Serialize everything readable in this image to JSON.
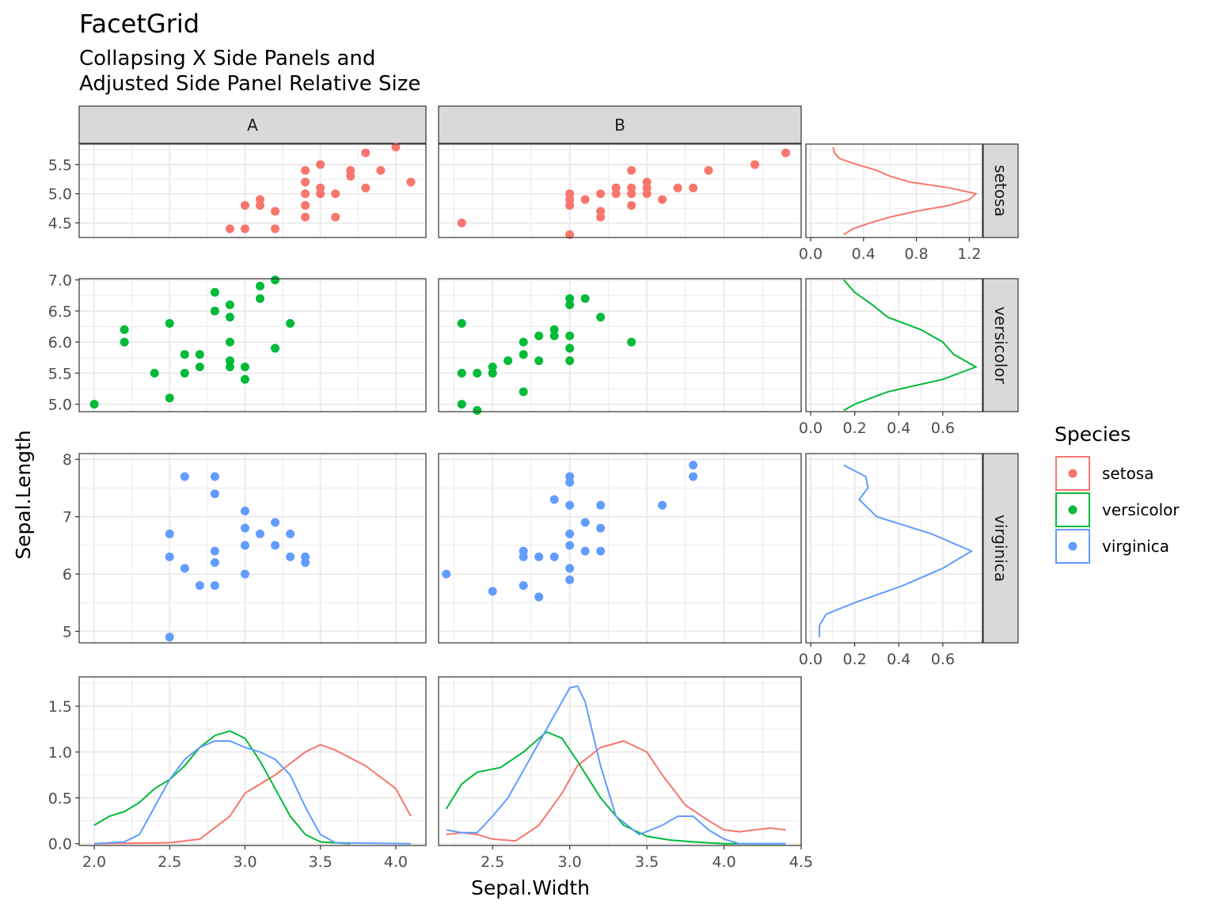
{
  "chart_data": {
    "type": "scatter",
    "title": "FacetGrid",
    "subtitle_lines": [
      "Collapsing X Side Panels and",
      "Adjusted Side Panel Relative Size"
    ],
    "xlabel": "Sepal.Width",
    "ylabel": "Sepal.Length",
    "grid": true,
    "legend_position": "right",
    "columns": [
      "A",
      "B"
    ],
    "rows": [
      "setosa",
      "versicolor",
      "virginica"
    ],
    "legend": {
      "title": "Species",
      "items": [
        {
          "label": "setosa",
          "color": "#F8766D"
        },
        {
          "label": "versicolor",
          "color": "#00BA38"
        },
        {
          "label": "virginica",
          "color": "#619CFF"
        }
      ]
    },
    "x_axis": {
      "range": [
        1.9,
        4.2
      ],
      "ticks": [
        "2.0",
        "2.5",
        "3.0",
        "3.5",
        "4.0"
      ]
    },
    "x_axis_B": {
      "range": [
        2.15,
        4.5
      ],
      "ticks": [
        "2.5",
        "3.0",
        "3.5",
        "4.0",
        "4.5"
      ]
    },
    "row_axes": [
      {
        "range": [
          4.25,
          5.85
        ],
        "ticks": [
          "4.5",
          "5.0",
          "5.5"
        ],
        "side_range": [
          0,
          1.3
        ],
        "side_ticks": [
          "0.0",
          "0.4",
          "0.8",
          "1.2"
        ]
      },
      {
        "range": [
          4.88,
          7.02
        ],
        "ticks": [
          "5.0",
          "5.5",
          "6.0",
          "6.5",
          "7.0"
        ],
        "side_range": [
          0,
          0.78
        ],
        "side_ticks": [
          "0.0",
          "0.2",
          "0.4",
          "0.6"
        ]
      },
      {
        "range": [
          4.8,
          8.1
        ],
        "ticks": [
          "5",
          "6",
          "7",
          "8"
        ],
        "side_range": [
          0,
          0.78
        ],
        "side_ticks": [
          "0.0",
          "0.2",
          "0.4",
          "0.6"
        ]
      }
    ],
    "density_axis": {
      "range": [
        -0.02,
        1.82
      ],
      "ticks": [
        "0.0",
        "0.5",
        "1.0",
        "1.5"
      ]
    },
    "points": {
      "setosa": {
        "A": [
          [
            2.9,
            4.4
          ],
          [
            3.0,
            4.4
          ],
          [
            3.2,
            4.4
          ],
          [
            3.0,
            4.8
          ],
          [
            3.1,
            4.8
          ],
          [
            3.1,
            4.9
          ],
          [
            3.2,
            4.7
          ],
          [
            3.4,
            4.6
          ],
          [
            3.4,
            4.8
          ],
          [
            3.4,
            5.0
          ],
          [
            3.4,
            5.2
          ],
          [
            3.4,
            5.4
          ],
          [
            3.5,
            5.0
          ],
          [
            3.5,
            5.1
          ],
          [
            3.5,
            5.5
          ],
          [
            3.6,
            4.6
          ],
          [
            3.6,
            5.0
          ],
          [
            3.7,
            5.3
          ],
          [
            3.7,
            5.4
          ],
          [
            3.8,
            5.1
          ],
          [
            3.8,
            5.7
          ],
          [
            3.9,
            5.4
          ],
          [
            4.0,
            5.8
          ],
          [
            4.1,
            5.2
          ]
        ],
        "B": [
          [
            2.3,
            4.5
          ],
          [
            3.0,
            4.3
          ],
          [
            3.0,
            4.8
          ],
          [
            3.0,
            4.9
          ],
          [
            3.0,
            5.0
          ],
          [
            3.1,
            4.9
          ],
          [
            3.2,
            4.6
          ],
          [
            3.2,
            4.7
          ],
          [
            3.2,
            5.0
          ],
          [
            3.3,
            5.0
          ],
          [
            3.3,
            5.1
          ],
          [
            3.4,
            4.8
          ],
          [
            3.4,
            5.0
          ],
          [
            3.4,
            5.1
          ],
          [
            3.4,
            5.4
          ],
          [
            3.5,
            5.0
          ],
          [
            3.5,
            5.1
          ],
          [
            3.5,
            5.2
          ],
          [
            3.6,
            4.9
          ],
          [
            3.7,
            5.1
          ],
          [
            3.8,
            5.1
          ],
          [
            3.9,
            5.4
          ],
          [
            4.2,
            5.5
          ],
          [
            4.4,
            5.7
          ]
        ]
      },
      "versicolor": {
        "A": [
          [
            2.0,
            5.0
          ],
          [
            2.2,
            6.0
          ],
          [
            2.2,
            6.2
          ],
          [
            2.4,
            5.5
          ],
          [
            2.5,
            5.1
          ],
          [
            2.5,
            6.3
          ],
          [
            2.6,
            5.5
          ],
          [
            2.6,
            5.8
          ],
          [
            2.7,
            5.6
          ],
          [
            2.7,
            5.8
          ],
          [
            2.8,
            6.5
          ],
          [
            2.8,
            6.8
          ],
          [
            2.9,
            5.6
          ],
          [
            2.9,
            5.7
          ],
          [
            2.9,
            6.0
          ],
          [
            2.9,
            6.4
          ],
          [
            2.9,
            6.6
          ],
          [
            3.0,
            5.4
          ],
          [
            3.0,
            5.6
          ],
          [
            3.1,
            6.7
          ],
          [
            3.1,
            6.9
          ],
          [
            3.2,
            5.9
          ],
          [
            3.2,
            7.0
          ],
          [
            3.3,
            6.3
          ]
        ],
        "B": [
          [
            2.3,
            5.0
          ],
          [
            2.3,
            5.5
          ],
          [
            2.3,
            6.3
          ],
          [
            2.4,
            4.9
          ],
          [
            2.4,
            5.5
          ],
          [
            2.5,
            5.5
          ],
          [
            2.5,
            5.6
          ],
          [
            2.6,
            5.7
          ],
          [
            2.7,
            5.2
          ],
          [
            2.7,
            5.8
          ],
          [
            2.7,
            6.0
          ],
          [
            2.8,
            5.7
          ],
          [
            2.8,
            6.1
          ],
          [
            2.9,
            6.1
          ],
          [
            2.9,
            6.2
          ],
          [
            3.0,
            5.7
          ],
          [
            3.0,
            5.9
          ],
          [
            3.0,
            6.1
          ],
          [
            3.0,
            6.6
          ],
          [
            3.0,
            6.7
          ],
          [
            3.1,
            6.7
          ],
          [
            3.2,
            6.4
          ],
          [
            3.4,
            6.0
          ]
        ]
      },
      "virginica": {
        "A": [
          [
            2.5,
            4.9
          ],
          [
            2.5,
            6.3
          ],
          [
            2.5,
            6.7
          ],
          [
            2.6,
            6.1
          ],
          [
            2.6,
            7.7
          ],
          [
            2.7,
            5.8
          ],
          [
            2.8,
            5.8
          ],
          [
            2.8,
            6.2
          ],
          [
            2.8,
            6.4
          ],
          [
            2.8,
            7.4
          ],
          [
            2.8,
            7.7
          ],
          [
            3.0,
            6.0
          ],
          [
            3.0,
            6.5
          ],
          [
            3.0,
            6.8
          ],
          [
            3.0,
            7.1
          ],
          [
            3.1,
            6.7
          ],
          [
            3.2,
            6.5
          ],
          [
            3.2,
            6.9
          ],
          [
            3.3,
            6.3
          ],
          [
            3.3,
            6.7
          ],
          [
            3.4,
            6.2
          ],
          [
            3.4,
            6.3
          ]
        ],
        "B": [
          [
            2.2,
            6.0
          ],
          [
            2.5,
            5.7
          ],
          [
            2.7,
            5.8
          ],
          [
            2.7,
            6.3
          ],
          [
            2.7,
            6.4
          ],
          [
            2.8,
            5.6
          ],
          [
            2.8,
            6.3
          ],
          [
            2.9,
            6.3
          ],
          [
            2.9,
            7.3
          ],
          [
            3.0,
            5.9
          ],
          [
            3.0,
            6.1
          ],
          [
            3.0,
            6.5
          ],
          [
            3.0,
            6.7
          ],
          [
            3.0,
            7.2
          ],
          [
            3.0,
            7.6
          ],
          [
            3.0,
            7.7
          ],
          [
            3.1,
            6.4
          ],
          [
            3.1,
            6.9
          ],
          [
            3.2,
            6.4
          ],
          [
            3.2,
            6.8
          ],
          [
            3.2,
            7.2
          ],
          [
            3.6,
            7.2
          ],
          [
            3.8,
            7.7
          ],
          [
            3.8,
            7.9
          ]
        ]
      }
    },
    "x_density": {
      "A": {
        "setosa": [
          [
            2.0,
            0
          ],
          [
            2.5,
            0.01
          ],
          [
            2.7,
            0.05
          ],
          [
            2.9,
            0.3
          ],
          [
            3.0,
            0.55
          ],
          [
            3.2,
            0.75
          ],
          [
            3.4,
            1.0
          ],
          [
            3.5,
            1.08
          ],
          [
            3.6,
            1.02
          ],
          [
            3.8,
            0.85
          ],
          [
            4.0,
            0.6
          ],
          [
            4.1,
            0.3
          ]
        ],
        "versicolor": [
          [
            2.0,
            0.2
          ],
          [
            2.1,
            0.3
          ],
          [
            2.2,
            0.35
          ],
          [
            2.3,
            0.45
          ],
          [
            2.4,
            0.6
          ],
          [
            2.5,
            0.7
          ],
          [
            2.6,
            0.85
          ],
          [
            2.7,
            1.05
          ],
          [
            2.8,
            1.18
          ],
          [
            2.9,
            1.23
          ],
          [
            3.0,
            1.15
          ],
          [
            3.1,
            0.9
          ],
          [
            3.2,
            0.6
          ],
          [
            3.3,
            0.3
          ],
          [
            3.4,
            0.1
          ],
          [
            3.5,
            0.02
          ],
          [
            3.7,
            0
          ]
        ],
        "virginica": [
          [
            2.0,
            0
          ],
          [
            2.2,
            0.02
          ],
          [
            2.3,
            0.1
          ],
          [
            2.4,
            0.4
          ],
          [
            2.5,
            0.7
          ],
          [
            2.6,
            0.92
          ],
          [
            2.7,
            1.05
          ],
          [
            2.8,
            1.12
          ],
          [
            2.9,
            1.12
          ],
          [
            3.0,
            1.05
          ],
          [
            3.1,
            1.0
          ],
          [
            3.2,
            0.92
          ],
          [
            3.3,
            0.75
          ],
          [
            3.4,
            0.4
          ],
          [
            3.5,
            0.1
          ],
          [
            3.6,
            0.01
          ],
          [
            4.1,
            0
          ]
        ]
      },
      "B": {
        "setosa": [
          [
            2.2,
            0.1
          ],
          [
            2.3,
            0.12
          ],
          [
            2.4,
            0.1
          ],
          [
            2.5,
            0.05
          ],
          [
            2.65,
            0.03
          ],
          [
            2.8,
            0.2
          ],
          [
            2.95,
            0.55
          ],
          [
            3.05,
            0.85
          ],
          [
            3.2,
            1.05
          ],
          [
            3.35,
            1.12
          ],
          [
            3.5,
            1.0
          ],
          [
            3.6,
            0.75
          ],
          [
            3.75,
            0.42
          ],
          [
            3.9,
            0.25
          ],
          [
            4.0,
            0.15
          ],
          [
            4.1,
            0.13
          ],
          [
            4.2,
            0.15
          ],
          [
            4.3,
            0.17
          ],
          [
            4.4,
            0.15
          ]
        ],
        "versicolor": [
          [
            2.2,
            0.38
          ],
          [
            2.3,
            0.65
          ],
          [
            2.4,
            0.78
          ],
          [
            2.55,
            0.83
          ],
          [
            2.7,
            1.0
          ],
          [
            2.85,
            1.22
          ],
          [
            2.95,
            1.15
          ],
          [
            3.05,
            0.9
          ],
          [
            3.2,
            0.5
          ],
          [
            3.35,
            0.2
          ],
          [
            3.5,
            0.08
          ],
          [
            3.65,
            0.04
          ],
          [
            3.8,
            0.02
          ],
          [
            4.0,
            0
          ],
          [
            4.4,
            0
          ]
        ],
        "virginica": [
          [
            2.2,
            0.15
          ],
          [
            2.3,
            0.12
          ],
          [
            2.4,
            0.12
          ],
          [
            2.5,
            0.3
          ],
          [
            2.6,
            0.5
          ],
          [
            2.7,
            0.8
          ],
          [
            2.8,
            1.1
          ],
          [
            2.9,
            1.4
          ],
          [
            3.0,
            1.7
          ],
          [
            3.05,
            1.72
          ],
          [
            3.1,
            1.55
          ],
          [
            3.2,
            0.85
          ],
          [
            3.3,
            0.3
          ],
          [
            3.45,
            0.1
          ],
          [
            3.6,
            0.2
          ],
          [
            3.7,
            0.3
          ],
          [
            3.8,
            0.3
          ],
          [
            3.9,
            0.15
          ],
          [
            4.0,
            0.05
          ],
          [
            4.1,
            0
          ],
          [
            4.4,
            0
          ]
        ]
      }
    },
    "y_density": {
      "setosa": [
        [
          4.3,
          0.25
        ],
        [
          4.4,
          0.32
        ],
        [
          4.5,
          0.45
        ],
        [
          4.6,
          0.6
        ],
        [
          4.7,
          0.8
        ],
        [
          4.8,
          1.05
        ],
        [
          4.9,
          1.2
        ],
        [
          5.0,
          1.25
        ],
        [
          5.1,
          1.05
        ],
        [
          5.2,
          0.75
        ],
        [
          5.3,
          0.6
        ],
        [
          5.4,
          0.5
        ],
        [
          5.5,
          0.35
        ],
        [
          5.6,
          0.22
        ],
        [
          5.7,
          0.18
        ],
        [
          5.8,
          0.17
        ]
      ],
      "versicolor": [
        [
          4.9,
          0.15
        ],
        [
          5.0,
          0.2
        ],
        [
          5.2,
          0.35
        ],
        [
          5.4,
          0.6
        ],
        [
          5.6,
          0.75
        ],
        [
          5.8,
          0.65
        ],
        [
          6.0,
          0.6
        ],
        [
          6.2,
          0.5
        ],
        [
          6.4,
          0.35
        ],
        [
          6.6,
          0.28
        ],
        [
          6.8,
          0.2
        ],
        [
          7.0,
          0.15
        ]
      ],
      "virginica": [
        [
          4.9,
          0.04
        ],
        [
          5.1,
          0.04
        ],
        [
          5.3,
          0.07
        ],
        [
          5.5,
          0.2
        ],
        [
          5.8,
          0.42
        ],
        [
          6.1,
          0.6
        ],
        [
          6.4,
          0.73
        ],
        [
          6.7,
          0.55
        ],
        [
          7.0,
          0.3
        ],
        [
          7.3,
          0.22
        ],
        [
          7.5,
          0.26
        ],
        [
          7.7,
          0.25
        ],
        [
          7.9,
          0.15
        ]
      ]
    }
  }
}
